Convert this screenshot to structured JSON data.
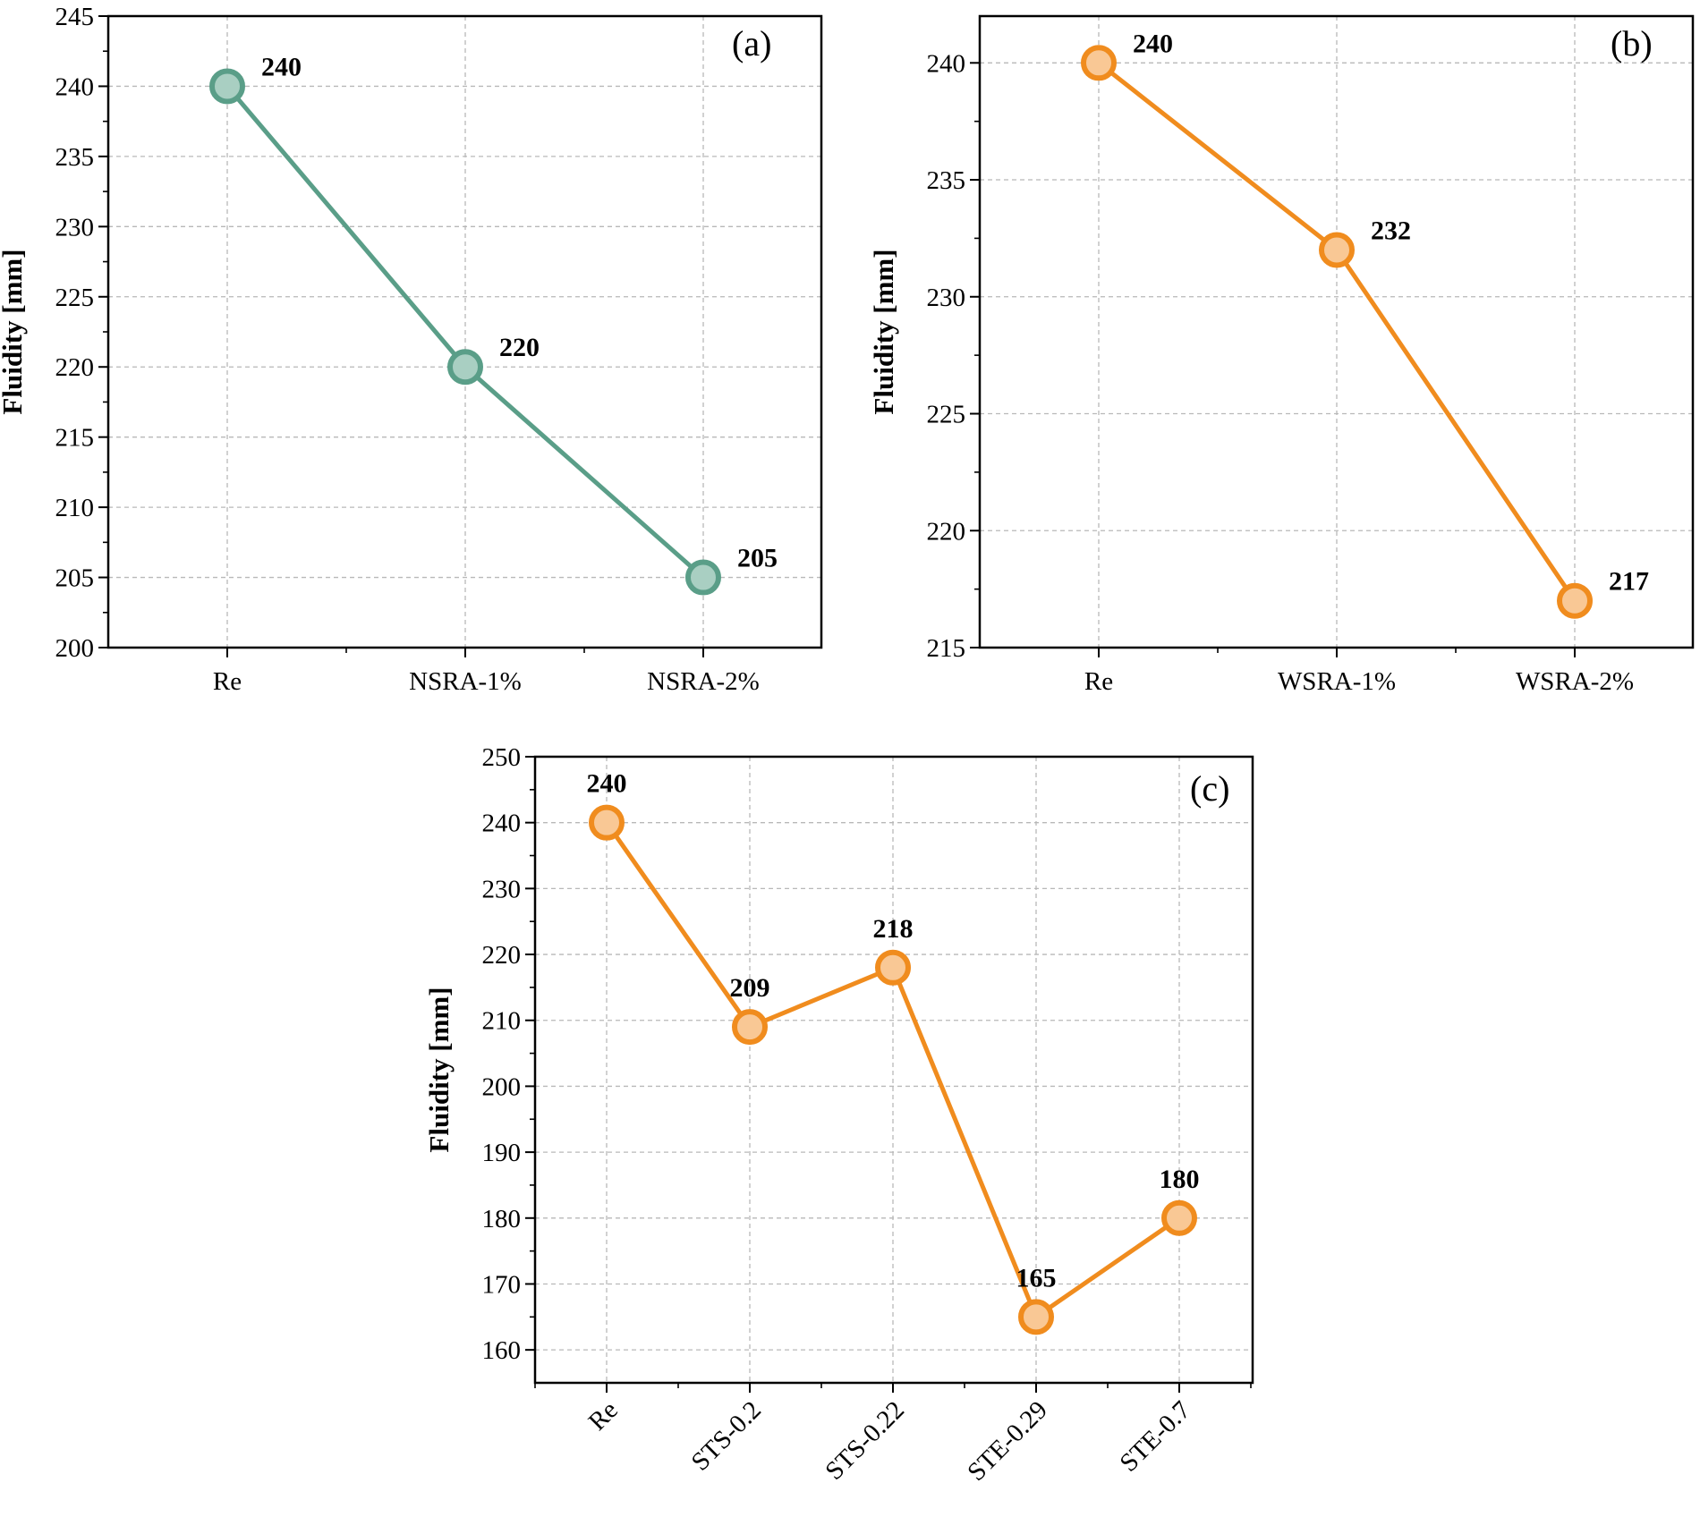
{
  "chart_data": [
    {
      "type": "line",
      "panel_label": "(a)",
      "categories": [
        "Re",
        "NSRA-1%",
        "NSRA-2%"
      ],
      "values": [
        240,
        220,
        205
      ],
      "data_labels": [
        "240",
        "220",
        "205"
      ],
      "ylabel": "Fluidity [mm]",
      "ylim": [
        200,
        245
      ],
      "yticks": [
        200,
        205,
        210,
        215,
        220,
        225,
        230,
        235,
        240,
        245
      ],
      "grid": true,
      "color": "#5a9e88",
      "marker_fill": "#a9cfc2"
    },
    {
      "type": "line",
      "panel_label": "(b)",
      "categories": [
        "Re",
        "WSRA-1%",
        "WSRA-2%"
      ],
      "values": [
        240,
        232,
        217
      ],
      "data_labels": [
        "240",
        "232",
        "217"
      ],
      "ylabel": "Fluidity [mm]",
      "ylim": [
        215,
        242
      ],
      "yticks": [
        215,
        220,
        225,
        230,
        235,
        240
      ],
      "grid": true,
      "color": "#f08c1e",
      "marker_fill": "#f9c895"
    },
    {
      "type": "line",
      "panel_label": "(c)",
      "categories": [
        "Re",
        "STS-0.2",
        "STS-0.22",
        "STE-0.29",
        "STE-0.7"
      ],
      "values": [
        240,
        209,
        218,
        165,
        180
      ],
      "data_labels": [
        "240",
        "209",
        "218",
        "165",
        "180"
      ],
      "ylabel": "Fluidity [mm]",
      "ylim": [
        155,
        250
      ],
      "yticks": [
        160,
        170,
        180,
        190,
        200,
        210,
        220,
        230,
        240,
        250
      ],
      "grid": true,
      "color": "#f08c1e",
      "marker_fill": "#f9c895"
    }
  ]
}
